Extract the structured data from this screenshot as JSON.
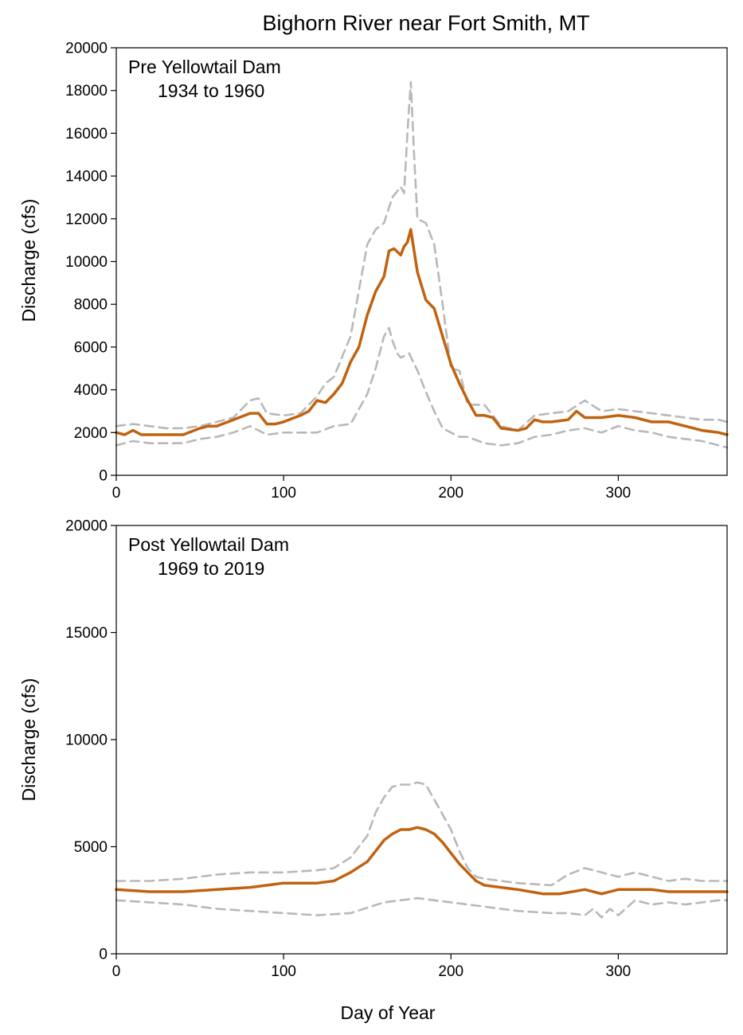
{
  "title": "Bighorn River near Fort Smith, MT",
  "x_axis_label": "Day of Year",
  "colors": {
    "median": "#c0620f",
    "bounds": "#b8b8b8",
    "axes": "#000000"
  },
  "chart_data": [
    {
      "type": "line",
      "annotation_line1": "Pre Yellowtail Dam",
      "annotation_line2": "1934 to 1960",
      "ylabel": "Discharge (cfs)",
      "xlim": [
        0,
        365
      ],
      "ylim": [
        0,
        20000
      ],
      "xticks": [
        0,
        100,
        200,
        300
      ],
      "yticks": [
        0,
        2000,
        4000,
        6000,
        8000,
        10000,
        12000,
        14000,
        16000,
        18000,
        20000
      ],
      "grid": false,
      "series": [
        {
          "role": "upper",
          "style": "dashed",
          "x": [
            0,
            10,
            20,
            30,
            40,
            50,
            60,
            70,
            80,
            85,
            90,
            100,
            110,
            120,
            125,
            130,
            140,
            150,
            155,
            160,
            165,
            170,
            172,
            174,
            176,
            178,
            180,
            185,
            190,
            195,
            200,
            205,
            210,
            220,
            230,
            240,
            250,
            260,
            270,
            280,
            290,
            300,
            310,
            320,
            330,
            340,
            350,
            360,
            365
          ],
          "y": [
            2300,
            2400,
            2300,
            2200,
            2200,
            2300,
            2500,
            2700,
            3500,
            3600,
            2900,
            2800,
            2900,
            3700,
            4300,
            4600,
            6500,
            10800,
            11500,
            11800,
            13000,
            13500,
            13200,
            16000,
            18400,
            15000,
            12000,
            11800,
            10800,
            8000,
            5000,
            4900,
            3300,
            3300,
            2300,
            2100,
            2800,
            2900,
            3000,
            3500,
            3000,
            3100,
            3000,
            2900,
            2800,
            2700,
            2600,
            2600,
            2500
          ]
        },
        {
          "role": "median",
          "style": "solid",
          "x": [
            0,
            5,
            10,
            15,
            20,
            30,
            40,
            50,
            55,
            60,
            70,
            80,
            85,
            90,
            95,
            100,
            110,
            115,
            120,
            125,
            130,
            135,
            140,
            145,
            150,
            155,
            160,
            163,
            166,
            170,
            172,
            174,
            176,
            178,
            180,
            185,
            190,
            195,
            200,
            205,
            210,
            215,
            220,
            225,
            230,
            240,
            245,
            250,
            255,
            260,
            270,
            275,
            280,
            290,
            300,
            310,
            320,
            330,
            340,
            350,
            360,
            365
          ],
          "y": [
            2000,
            1900,
            2100,
            1900,
            1900,
            1900,
            1900,
            2200,
            2300,
            2300,
            2600,
            2900,
            2900,
            2400,
            2400,
            2500,
            2800,
            3000,
            3500,
            3400,
            3800,
            4300,
            5300,
            6000,
            7500,
            8600,
            9300,
            10500,
            10600,
            10300,
            10700,
            10900,
            11500,
            10500,
            9500,
            8200,
            7800,
            6500,
            5200,
            4300,
            3500,
            2800,
            2800,
            2700,
            2200,
            2100,
            2200,
            2600,
            2500,
            2500,
            2600,
            3000,
            2700,
            2700,
            2800,
            2700,
            2500,
            2500,
            2300,
            2100,
            2000,
            1900
          ]
        },
        {
          "role": "lower",
          "style": "dashed",
          "x": [
            0,
            10,
            20,
            30,
            40,
            50,
            60,
            70,
            80,
            90,
            100,
            110,
            120,
            130,
            140,
            150,
            155,
            160,
            163,
            165,
            168,
            170,
            175,
            180,
            185,
            190,
            195,
            200,
            205,
            210,
            220,
            230,
            240,
            250,
            260,
            270,
            280,
            290,
            300,
            310,
            320,
            330,
            340,
            350,
            360,
            365
          ],
          "y": [
            1400,
            1600,
            1500,
            1500,
            1500,
            1700,
            1800,
            2000,
            2300,
            1900,
            2000,
            2000,
            2000,
            2300,
            2400,
            3800,
            5000,
            6500,
            6900,
            6300,
            5700,
            5500,
            5700,
            4900,
            3900,
            3000,
            2200,
            2000,
            1800,
            1800,
            1500,
            1400,
            1500,
            1800,
            1900,
            2100,
            2200,
            2000,
            2300,
            2100,
            2000,
            1800,
            1700,
            1600,
            1400,
            1300
          ]
        }
      ]
    },
    {
      "type": "line",
      "annotation_line1": "Post Yellowtail Dam",
      "annotation_line2": "1969 to 2019",
      "ylabel": "Discharge (cfs)",
      "xlim": [
        0,
        365
      ],
      "ylim": [
        0,
        20000
      ],
      "xticks": [
        0,
        100,
        200,
        300
      ],
      "yticks": [
        0,
        5000,
        10000,
        15000,
        20000
      ],
      "grid": false,
      "series": [
        {
          "role": "upper",
          "style": "dashed",
          "x": [
            0,
            20,
            40,
            60,
            80,
            100,
            120,
            130,
            140,
            150,
            155,
            160,
            165,
            170,
            175,
            180,
            185,
            190,
            195,
            200,
            205,
            210,
            215,
            220,
            240,
            260,
            270,
            280,
            290,
            300,
            310,
            320,
            330,
            340,
            350,
            360,
            365
          ],
          "y": [
            3400,
            3400,
            3500,
            3700,
            3800,
            3800,
            3900,
            4000,
            4500,
            5500,
            6600,
            7300,
            7800,
            7900,
            7900,
            8000,
            7900,
            7200,
            6500,
            5800,
            4800,
            4000,
            3600,
            3500,
            3300,
            3200,
            3700,
            4000,
            3800,
            3600,
            3800,
            3600,
            3400,
            3500,
            3400,
            3400,
            3400
          ]
        },
        {
          "role": "median",
          "style": "solid",
          "x": [
            0,
            20,
            40,
            60,
            80,
            100,
            120,
            130,
            140,
            150,
            155,
            160,
            165,
            170,
            175,
            180,
            185,
            190,
            195,
            200,
            205,
            210,
            215,
            220,
            240,
            255,
            265,
            280,
            290,
            300,
            310,
            320,
            330,
            340,
            350,
            360,
            365
          ],
          "y": [
            3000,
            2900,
            2900,
            3000,
            3100,
            3300,
            3300,
            3400,
            3800,
            4300,
            4800,
            5300,
            5600,
            5800,
            5800,
            5900,
            5800,
            5600,
            5200,
            4700,
            4200,
            3800,
            3400,
            3200,
            3000,
            2800,
            2800,
            3000,
            2800,
            3000,
            3000,
            3000,
            2900,
            2900,
            2900,
            2900,
            2900
          ]
        },
        {
          "role": "lower",
          "style": "dashed",
          "x": [
            0,
            20,
            40,
            60,
            80,
            100,
            120,
            140,
            160,
            180,
            200,
            220,
            240,
            260,
            270,
            280,
            285,
            290,
            295,
            300,
            310,
            320,
            330,
            340,
            350,
            360,
            365
          ],
          "y": [
            2500,
            2400,
            2300,
            2100,
            2000,
            1900,
            1800,
            1900,
            2400,
            2600,
            2400,
            2200,
            2000,
            1900,
            1900,
            1800,
            2100,
            1700,
            2100,
            1800,
            2500,
            2300,
            2400,
            2300,
            2400,
            2500,
            2500
          ]
        }
      ]
    }
  ]
}
